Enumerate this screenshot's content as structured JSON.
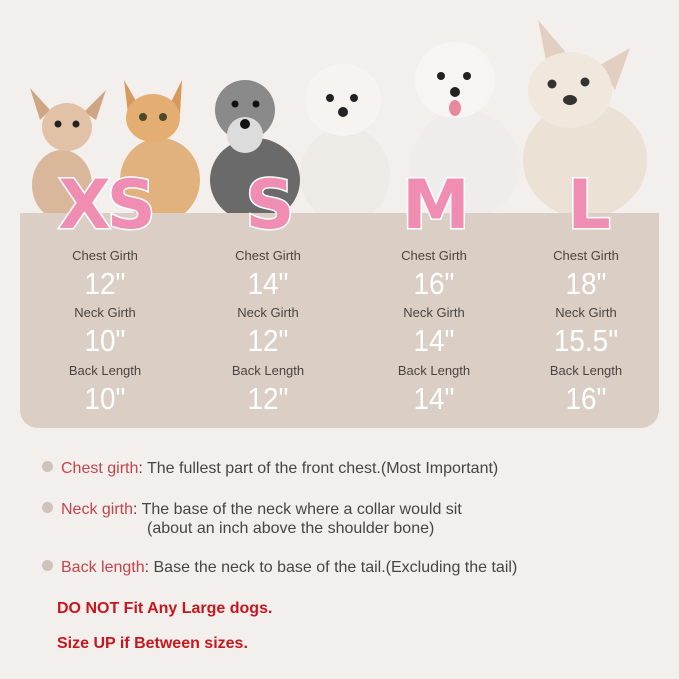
{
  "colors": {
    "size_letter": "#f08db3",
    "panel": "#dbcfc5",
    "term": "#c3444c",
    "warning": "#c8161e"
  },
  "pets": [
    "chihuahua",
    "orange-cat",
    "schnauzer",
    "maltese",
    "white-terrier",
    "french-bulldog"
  ],
  "sizes": [
    {
      "size": "XS",
      "chest_label": "Chest Girth",
      "chest": "12\"",
      "neck_label": "Neck Girth",
      "neck": "10\"",
      "back_label": "Back Length",
      "back": "10\""
    },
    {
      "size": "S",
      "chest_label": "Chest Girth",
      "chest": "14\"",
      "neck_label": "Neck Girth",
      "neck": "12\"",
      "back_label": "Back Length",
      "back": "12\""
    },
    {
      "size": "M",
      "chest_label": "Chest Girth",
      "chest": "16\"",
      "neck_label": "Neck Girth",
      "neck": "14\"",
      "back_label": "Back Length",
      "back": "14\""
    },
    {
      "size": "L",
      "chest_label": "Chest Girth",
      "chest": "18\"",
      "neck_label": "Neck Girth",
      "neck": "15.5\"",
      "back_label": "Back Length",
      "back": "16\""
    }
  ],
  "notes": [
    {
      "term": "Chest girth",
      "text": ": The fullest part of the front chest.(Most Important)"
    },
    {
      "term": "Neck girth",
      "text": ": The base of the neck where a collar would sit",
      "continuation": "(about an inch above the shoulder bone)"
    },
    {
      "term": "Back length",
      "text": ": Base the neck to base of the tail.(Excluding the tail)"
    }
  ],
  "warnings": [
    "DO NOT Fit Any Large dogs.",
    "Size UP if Between sizes."
  ]
}
